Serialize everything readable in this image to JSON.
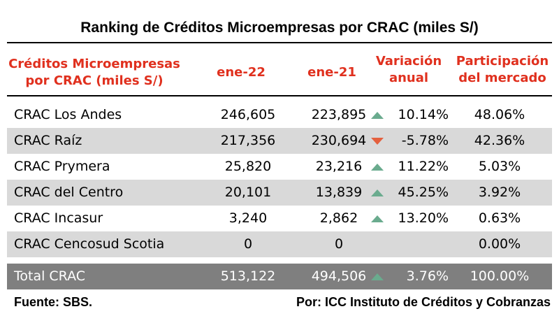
{
  "title": "Ranking de Créditos Microempresas por CRAC (miles S/)",
  "headers": {
    "col_name_line1": "Créditos Microempresas",
    "col_name_line2": "por CRAC (miles S/)",
    "col_jan22": "ene-22",
    "col_jan21": "ene-21",
    "col_var_line1": "Variación",
    "col_var_line2": "anual",
    "col_part_line1": "Participación",
    "col_part_line2": "del mercado"
  },
  "colors": {
    "header_text": "#e0301e",
    "up_arrow": "#6aab8e",
    "down_arrow": "#e4603e",
    "shaded_row": "#d9d9d9",
    "total_row": "#7f7f7f"
  },
  "rows": [
    {
      "name": "CRAC Los Andes",
      "jan22": "246,605",
      "jan21": "223,895",
      "trend": "up",
      "variation": "10.14%",
      "share": "48.06%"
    },
    {
      "name": "CRAC Raíz",
      "jan22": "217,356",
      "jan21": "230,694",
      "trend": "down",
      "variation": "-5.78%",
      "share": "42.36%"
    },
    {
      "name": "CRAC Prymera",
      "jan22": "25,820",
      "jan21": "23,216",
      "trend": "up",
      "variation": "11.22%",
      "share": "5.03%"
    },
    {
      "name": "CRAC del Centro",
      "jan22": "20,101",
      "jan21": "13,839",
      "trend": "up",
      "variation": "45.25%",
      "share": "3.92%"
    },
    {
      "name": "CRAC Incasur",
      "jan22": "3,240",
      "jan21": "2,862",
      "trend": "up",
      "variation": "13.20%",
      "share": "0.63%"
    },
    {
      "name": "CRAC Cencosud Scotia",
      "jan22": "0",
      "jan21": "0",
      "trend": "",
      "variation": "",
      "share": "0.00%"
    }
  ],
  "total": {
    "name": "Total CRAC",
    "jan22": "513,122",
    "jan21": "494,506",
    "trend": "up",
    "variation": "3.76%",
    "share": "100.00%"
  },
  "footer": {
    "source": "Fuente: SBS.",
    "credit": "Por: ICC Instituto de Créditos y Cobranzas"
  }
}
